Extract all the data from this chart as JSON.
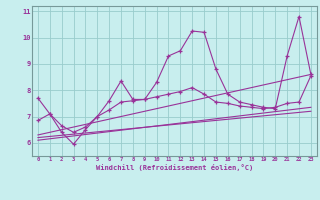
{
  "xlabel": "Windchill (Refroidissement éolien,°C)",
  "background_color": "#c8eeee",
  "line_color": "#993399",
  "grid_color": "#99cccc",
  "xlim": [
    -0.5,
    23.5
  ],
  "ylim": [
    5.5,
    11.2
  ],
  "xticks": [
    0,
    1,
    2,
    3,
    4,
    5,
    6,
    7,
    8,
    9,
    10,
    11,
    12,
    13,
    14,
    15,
    16,
    17,
    18,
    19,
    20,
    21,
    22,
    23
  ],
  "yticks": [
    6,
    7,
    8,
    9,
    10,
    11
  ],
  "line1_x": [
    0,
    1,
    2,
    3,
    4,
    5,
    6,
    7,
    8,
    9,
    10,
    11,
    12,
    13,
    14,
    15,
    16,
    17,
    18,
    19,
    20,
    21,
    22,
    23
  ],
  "line1_y": [
    7.7,
    7.1,
    6.4,
    5.95,
    6.5,
    7.0,
    7.6,
    8.35,
    7.65,
    7.65,
    8.3,
    9.3,
    9.5,
    10.25,
    10.2,
    8.8,
    7.85,
    7.55,
    7.45,
    7.35,
    7.3,
    9.3,
    10.8,
    8.6
  ],
  "line2_x": [
    0,
    1,
    2,
    3,
    4,
    5,
    6,
    7,
    8,
    9,
    10,
    11,
    12,
    13,
    14,
    15,
    16,
    17,
    18,
    19,
    20,
    21,
    22,
    23
  ],
  "line2_y": [
    6.85,
    7.1,
    6.65,
    6.4,
    6.6,
    7.0,
    7.25,
    7.55,
    7.6,
    7.65,
    7.75,
    7.85,
    7.95,
    8.1,
    7.85,
    7.55,
    7.5,
    7.4,
    7.35,
    7.3,
    7.35,
    7.5,
    7.55,
    8.55
  ],
  "line3_x": [
    0,
    23
  ],
  "line3_y": [
    6.3,
    8.6
  ],
  "line4_x": [
    0,
    23
  ],
  "line4_y": [
    6.1,
    7.35
  ],
  "line5_x": [
    0,
    23
  ],
  "line5_y": [
    6.2,
    7.2
  ],
  "figsize": [
    3.2,
    2.0
  ],
  "dpi": 100
}
